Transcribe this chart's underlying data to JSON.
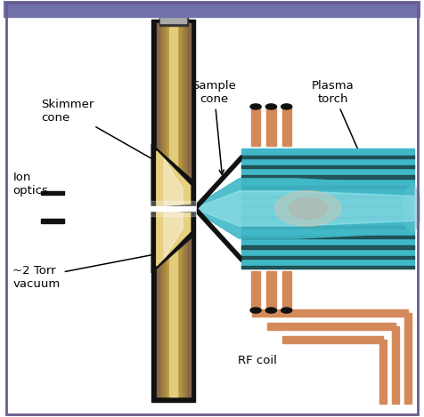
{
  "title": "",
  "labels": {
    "skimmer_cone": "Skimmer\ncone",
    "ion_optics": "Ion\noptics",
    "vacuum": "~2 Torr\nvacuum",
    "sample_cone": "Sample\ncone",
    "plasma_torch": "Plasma\ntorch",
    "rf_coil": "RF coil"
  },
  "colors": {
    "outer_black": "#111111",
    "golden_gradient_light": "#e8d080",
    "golden_gradient_dark": "#b08020",
    "golden_mid": "#d4a840",
    "white_beam": "#f8f8f8",
    "plasma_blue": "#40b8c8",
    "plasma_blue_light": "#80d8e8",
    "torch_body": "#40b8c8",
    "torch_lines": "#1a1a1a",
    "copper": "#d4895a",
    "copper_dark": "#b06030",
    "copper_light": "#e8b090",
    "red_plasma": "#cc4040",
    "background": "#ffffff",
    "top_bar": "#7070aa",
    "border_color": "#6b5b8e"
  }
}
